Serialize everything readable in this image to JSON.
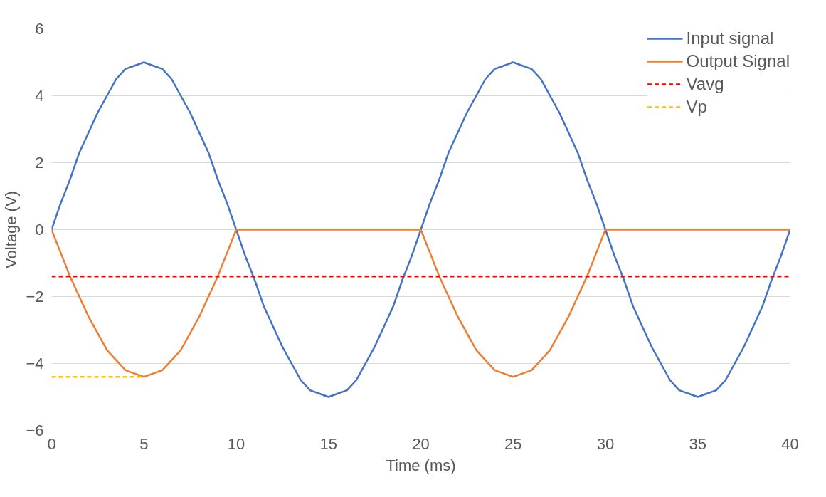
{
  "chart_data": {
    "type": "line",
    "xlabel": "Time (ms)",
    "ylabel": "Voltage (V)",
    "x": [
      0,
      0.5,
      1,
      1.5,
      2,
      2.5,
      3,
      3.5,
      4,
      4.5,
      5,
      5.5,
      6,
      6.5,
      7,
      7.5,
      8,
      8.5,
      9,
      9.5,
      10,
      10.5,
      11,
      11.5,
      12,
      12.5,
      13,
      13.5,
      14,
      14.5,
      15,
      15.5,
      16,
      16.5,
      17,
      17.5,
      18,
      18.5,
      19,
      19.5,
      20,
      20.5,
      21,
      21.5,
      22,
      22.5,
      23,
      23.5,
      24,
      24.5,
      25,
      25.5,
      26,
      26.5,
      27,
      27.5,
      28,
      28.5,
      29,
      29.5,
      30,
      30.5,
      31,
      31.5,
      32,
      32.5,
      33,
      33.5,
      34,
      34.5,
      35,
      35.5,
      36,
      36.5,
      37,
      37.5,
      38,
      38.5,
      39,
      39.5,
      40
    ],
    "series": [
      {
        "name": "Input signal",
        "color": "#4472c4",
        "values": [
          0,
          0.8,
          1.5,
          2.3,
          2.9,
          3.5,
          4,
          4.5,
          4.8,
          4.9,
          5,
          4.9,
          4.8,
          4.5,
          4,
          3.5,
          2.9,
          2.3,
          1.5,
          0.8,
          0,
          -0.8,
          -1.5,
          -2.3,
          -2.9,
          -3.5,
          -4,
          -4.5,
          -4.8,
          -4.9,
          -5,
          -4.9,
          -4.8,
          -4.5,
          -4,
          -3.5,
          -2.9,
          -2.3,
          -1.5,
          -0.8,
          0,
          0.8,
          1.5,
          2.3,
          2.9,
          3.5,
          4,
          4.5,
          4.8,
          4.9,
          5,
          4.9,
          4.8,
          4.5,
          4,
          3.5,
          2.9,
          2.3,
          1.5,
          0.8,
          0,
          -0.8,
          -1.5,
          -2.3,
          -2.9,
          -3.5,
          -4,
          -4.5,
          -4.8,
          -4.9,
          -5,
          -4.9,
          -4.8,
          -4.5,
          -4,
          -3.5,
          -2.9,
          -2.3,
          -1.5,
          -0.8,
          0
        ]
      },
      {
        "name": "Output Signal",
        "color": "#ed7d31",
        "values": [
          0,
          -0.7,
          -1.4,
          -2,
          -2.6,
          -3.1,
          -3.6,
          -3.9,
          -4.2,
          -4.3,
          -4.4,
          -4.3,
          -4.2,
          -3.9,
          -3.6,
          -3.1,
          -2.6,
          -2,
          -1.4,
          -0.7,
          0,
          0,
          0,
          0,
          0,
          0,
          0,
          0,
          0,
          0,
          0,
          0,
          0,
          0,
          0,
          0,
          0,
          0,
          0,
          0,
          0,
          -0.7,
          -1.4,
          -2,
          -2.6,
          -3.1,
          -3.6,
          -3.9,
          -4.2,
          -4.3,
          -4.4,
          -4.3,
          -4.2,
          -3.9,
          -3.6,
          -3.1,
          -2.6,
          -2,
          -1.4,
          -0.7,
          0,
          0,
          0,
          0,
          0,
          0,
          0,
          0,
          0,
          0,
          0,
          0,
          0,
          0,
          0,
          0,
          0,
          0,
          0,
          0,
          0
        ]
      },
      {
        "name": "Vavg",
        "color": "#ff0000",
        "line_style": "dashed",
        "x": [
          0,
          40
        ],
        "values": [
          -1.4,
          -1.4
        ]
      },
      {
        "name": "Vp",
        "color": "#ffc000",
        "line_style": "dashed",
        "x": [
          0,
          5
        ],
        "values": [
          -4.4,
          -4.4
        ]
      }
    ],
    "xlim": [
      0,
      40
    ],
    "xticks": [
      0,
      5,
      10,
      15,
      20,
      25,
      30,
      35,
      40
    ],
    "ylim": [
      -6,
      6
    ],
    "yticks": [
      -6,
      -4,
      -2,
      0,
      2,
      4,
      6
    ],
    "grid": "y",
    "legend": "top right",
    "line_style": "solid",
    "marker": "none"
  }
}
